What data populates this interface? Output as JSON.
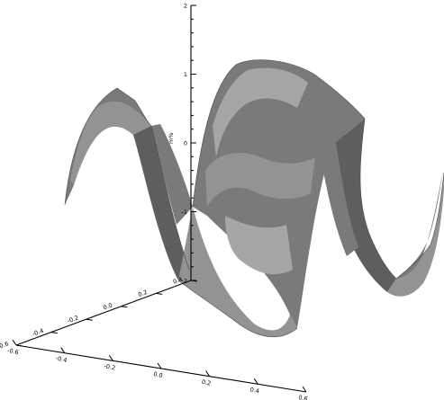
{
  "chart_data": {
    "type": "surface",
    "title": "",
    "zlabel": "m%",
    "xlabel": "",
    "ylabel": "",
    "zlim": [
      -2,
      2
    ],
    "z_ticks": [
      "2",
      "1",
      "0",
      "-1",
      "-2"
    ],
    "x_ticks": [
      "-0.6",
      "-0.4",
      "-0.2",
      "0.0",
      "0.2",
      "0.4",
      "0.6"
    ],
    "y_ticks": [
      "-0.6",
      "-0.4",
      "-0.2",
      "0.0",
      "0.2",
      "0.4"
    ],
    "surface": {
      "shading": "gray",
      "profile_x": [
        -0.6,
        -0.5,
        -0.4,
        -0.3,
        -0.2,
        -0.1,
        0.0,
        0.1,
        0.2,
        0.3,
        0.4,
        0.5,
        0.6
      ],
      "profile_z": [
        0.0,
        1.4,
        1.2,
        -1.0,
        -2.0,
        0.2,
        1.9,
        1.7,
        -0.3,
        -1.4,
        -1.2,
        0.5,
        1.0
      ]
    }
  }
}
